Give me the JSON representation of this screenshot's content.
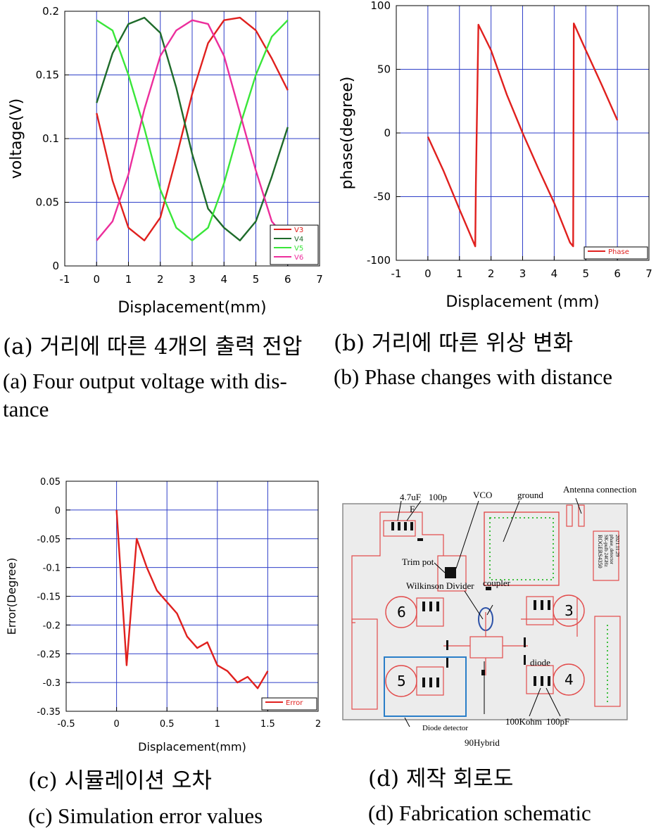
{
  "chart_data": [
    {
      "type": "line",
      "xlabel": "Displacement(mm)",
      "ylabel": "voltage(V)",
      "xlim": [
        -1,
        7
      ],
      "ylim": [
        0,
        0.2
      ],
      "xticks": [
        "-1",
        "0",
        "1",
        "2",
        "3",
        "4",
        "5",
        "6",
        "7"
      ],
      "yticks": [
        "0",
        "0.05",
        "0.1",
        "0.15",
        "0.2"
      ],
      "grid": true,
      "legend_position": "bottom-right",
      "series": [
        {
          "name": "V3",
          "color": "#e0201e",
          "x": [
            0,
            0.5,
            1,
            1.5,
            2,
            2.5,
            3,
            3.5,
            4,
            4.5,
            5,
            5.5,
            6
          ],
          "values": [
            0.12,
            0.067,
            0.03,
            0.02,
            0.038,
            0.085,
            0.135,
            0.175,
            0.193,
            0.195,
            0.185,
            0.163,
            0.138
          ]
        },
        {
          "name": "V4",
          "color": "#1e6b2a",
          "x": [
            0,
            0.5,
            1,
            1.5,
            2,
            2.5,
            3,
            3.5,
            4,
            4.5,
            5,
            5.5,
            6
          ],
          "values": [
            0.128,
            0.167,
            0.19,
            0.195,
            0.183,
            0.14,
            0.088,
            0.045,
            0.03,
            0.02,
            0.035,
            0.07,
            0.109
          ]
        },
        {
          "name": "V5",
          "color": "#39e639",
          "x": [
            0,
            0.5,
            1,
            1.5,
            2,
            2.5,
            3,
            3.5,
            4,
            4.5,
            5,
            5.5,
            6
          ],
          "values": [
            0.193,
            0.185,
            0.15,
            0.108,
            0.06,
            0.03,
            0.02,
            0.03,
            0.065,
            0.11,
            0.15,
            0.18,
            0.193
          ]
        },
        {
          "name": "V6",
          "color": "#ec2e9c",
          "x": [
            0,
            0.5,
            1,
            1.5,
            2,
            2.5,
            3,
            3.5,
            4,
            4.5,
            5,
            5.5,
            6
          ],
          "values": [
            0.02,
            0.035,
            0.072,
            0.123,
            0.165,
            0.185,
            0.193,
            0.19,
            0.165,
            0.12,
            0.075,
            0.035,
            0.02
          ]
        }
      ]
    },
    {
      "type": "line",
      "xlabel": "Displacement (mm)",
      "ylabel": "phase(degree)",
      "xlim": [
        -1,
        7
      ],
      "ylim": [
        -100,
        100
      ],
      "xticks": [
        "-1",
        "0",
        "1",
        "2",
        "3",
        "4",
        "5",
        "6",
        "7"
      ],
      "yticks": [
        "-100",
        "-50",
        "0",
        "50",
        "100"
      ],
      "grid": true,
      "legend_position": "bottom-right",
      "series": [
        {
          "name": "Phase",
          "color": "#e0201e",
          "x": [
            0,
            0.5,
            1,
            1.5,
            1.52,
            1.6,
            2,
            2.5,
            3,
            3.5,
            4,
            4.5,
            4.6,
            4.62,
            5,
            5.5,
            6
          ],
          "values": [
            -3,
            -30,
            -60,
            -89,
            -40,
            85,
            65,
            30,
            0,
            -28,
            -55,
            -86,
            -89,
            86,
            65,
            38,
            10
          ]
        }
      ]
    },
    {
      "type": "line",
      "xlabel": "Displacement(mm)",
      "ylabel": "Error(Degree)",
      "xlim": [
        -0.5,
        2
      ],
      "ylim": [
        -0.35,
        0.05
      ],
      "xticks": [
        "-0.5",
        "0",
        "0.5",
        "1",
        "1.5",
        "2"
      ],
      "yticks": [
        "0.05",
        "0",
        "-0.05",
        "-0.1",
        "-0.15",
        "-0.2",
        "-0.25",
        "-0.3",
        "-0.35"
      ],
      "grid": true,
      "legend_position": "bottom-right",
      "series": [
        {
          "name": "Error",
          "color": "#e0201e",
          "x": [
            0,
            0.1,
            0.2,
            0.3,
            0.4,
            0.5,
            0.6,
            0.7,
            0.8,
            0.9,
            1.0,
            1.1,
            1.2,
            1.3,
            1.4,
            1.5
          ],
          "values": [
            0,
            -0.27,
            -0.05,
            -0.1,
            -0.14,
            -0.16,
            -0.18,
            -0.22,
            -0.24,
            -0.23,
            -0.27,
            -0.28,
            -0.3,
            -0.29,
            -0.31,
            -0.28
          ]
        }
      ]
    }
  ],
  "captions": {
    "a_ko": "(a) 거리에 따른 4개의 출력 전압",
    "a_en": "(a) Four output voltage with dis- tance",
    "b_ko": "(b) 거리에 따른 위상 변화",
    "b_en": "(b) Phase changes with distance",
    "c_ko": "(c) 시뮬레이션 오차",
    "c_en": "(c) Simulation error values",
    "d_ko": "(d) 제작 회로도",
    "d_en": "(d) Fabrication schematic"
  },
  "schematic": {
    "labels": {
      "cap1": "4.7uF",
      "cap2": "100p",
      "cap2b": "F",
      "vco": "VCO",
      "ground": "ground",
      "antenna": "Antenna connection",
      "trimpot": "Trim pot",
      "wilkinson": "Wilkinson Divider",
      "coupler": "coupler",
      "diode": "diode",
      "diode_detector": "Diode detector",
      "hybrid": "90Hybrid",
      "resistor": "100Kohm",
      "cap3": "100pF",
      "board_1": "ROGERS4350",
      "board_2": "SK-pulb 24GHz",
      "board_3": "phase_detector",
      "board_4": "2021.11.29"
    },
    "ports": [
      "6",
      "5",
      "3",
      "4"
    ]
  }
}
